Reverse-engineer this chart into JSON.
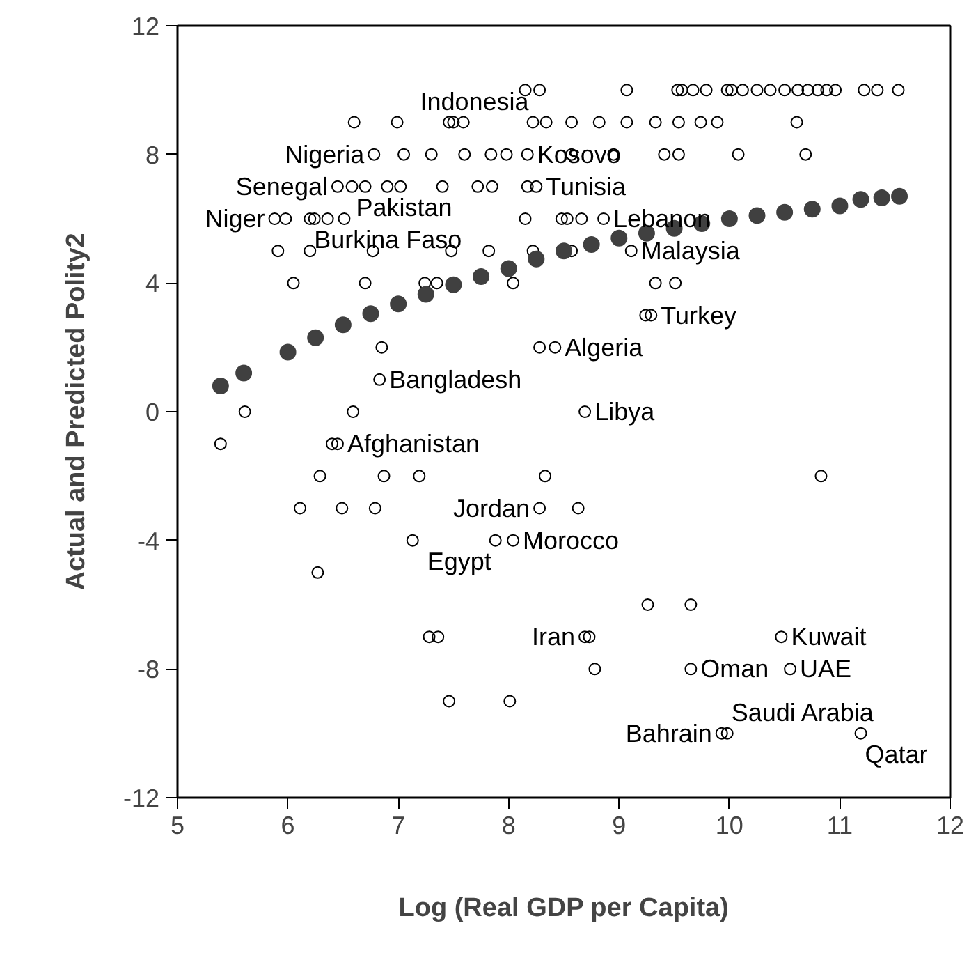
{
  "chart_data": {
    "type": "scatter",
    "xlabel": "Log (Real GDP per Capita)",
    "ylabel": "Actual and Predicted Polity2",
    "xlim": [
      5,
      12
    ],
    "ylim": [
      -12,
      12
    ],
    "xticks": [
      5,
      6,
      7,
      8,
      9,
      10,
      11,
      12
    ],
    "yticks": [
      -12,
      -8,
      -4,
      0,
      4,
      8,
      12
    ],
    "grid": false,
    "series": [
      {
        "color": "#000000",
        "marker": "circle",
        "x": [
          6.78,
          7.05,
          7.3,
          7.6,
          8.15,
          8.28,
          9.07,
          9.53,
          9.57,
          9.67,
          9.79,
          9.98,
          10.02,
          10.12,
          10.25,
          10.37,
          10.5,
          10.62,
          10.71,
          10.8,
          10.88,
          10.96,
          11.22,
          11.34,
          11.53,
          6.6,
          6.99,
          7.46,
          7.5,
          7.59,
          8.22,
          8.34,
          8.57,
          8.82,
          9.07,
          9.33,
          9.54,
          9.74,
          9.89,
          10.61,
          7.84,
          7.98,
          8.17,
          8.57,
          8.95,
          9.41,
          9.54,
          10.08,
          10.69,
          6.45,
          6.58,
          6.7,
          6.9,
          7.02,
          7.4,
          7.72,
          7.85,
          8.17,
          8.25,
          5.88,
          5.98,
          6.2,
          6.24,
          6.36,
          6.51,
          8.15,
          8.48,
          8.53,
          8.66,
          8.86,
          5.91,
          6.2,
          6.77,
          7.48,
          7.82,
          8.22,
          8.57,
          9.11,
          6.05,
          6.7,
          7.24,
          7.35,
          8.04,
          9.33,
          9.51,
          9.24,
          9.29,
          6.85,
          8.28,
          8.42,
          6.83,
          5.61,
          6.59,
          8.69,
          5.39,
          6.4,
          6.45,
          6.29,
          6.87,
          7.19,
          8.33,
          10.83,
          6.11,
          6.49,
          6.79,
          8.28,
          8.63,
          7.13,
          7.88,
          8.04,
          6.27,
          9.26,
          9.65,
          7.28,
          7.36,
          8.69,
          8.73,
          10.47,
          8.78,
          9.65,
          10.55,
          7.46,
          8.01,
          9.93,
          9.98,
          11.19
        ],
        "values": [
          8,
          8,
          8,
          8,
          10,
          10,
          10,
          10,
          10,
          10,
          10,
          10,
          10,
          10,
          10,
          10,
          10,
          10,
          10,
          10,
          10,
          10,
          10,
          10,
          10,
          9,
          9,
          9,
          9,
          9,
          9,
          9,
          9,
          9,
          9,
          9,
          9,
          9,
          9,
          9,
          8,
          8,
          8,
          8,
          8,
          8,
          8,
          8,
          8,
          7,
          7,
          7,
          7,
          7,
          7,
          7,
          7,
          7,
          7,
          6,
          6,
          6,
          6,
          6,
          6,
          6,
          6,
          6,
          6,
          6,
          5,
          5,
          5,
          5,
          5,
          5,
          5,
          5,
          4,
          4,
          4,
          4,
          4,
          4,
          4,
          3,
          3,
          2,
          2,
          2,
          1,
          0,
          0,
          0,
          -1,
          -1,
          -1,
          -2,
          -2,
          -2,
          -2,
          -2,
          -3,
          -3,
          -3,
          -3,
          -3,
          -4,
          -4,
          -4,
          -5,
          -6,
          -6,
          -7,
          -7,
          -7,
          -7,
          -7,
          -8,
          -8,
          -8,
          -9,
          -9,
          -10,
          -10,
          -10
        ]
      },
      {
        "color": "#404040",
        "marker": "circle",
        "x": [
          5.39,
          5.6,
          6.0,
          6.25,
          6.5,
          6.75,
          7.0,
          7.25,
          7.5,
          7.75,
          8.0,
          8.25,
          8.5,
          8.75,
          9.0,
          9.25,
          9.5,
          9.75,
          10.0,
          10.25,
          10.5,
          10.75,
          11.0,
          11.19,
          11.38,
          11.54
        ],
        "values": [
          0.8,
          1.2,
          1.85,
          2.3,
          2.7,
          3.05,
          3.35,
          3.65,
          3.95,
          4.2,
          4.45,
          4.75,
          5.0,
          5.2,
          5.4,
          5.55,
          5.7,
          5.85,
          6.0,
          6.1,
          6.2,
          6.3,
          6.4,
          6.6,
          6.65,
          6.7
        ]
      }
    ],
    "annotations": [
      {
        "text": "Indonesia",
        "x": 8.22,
        "y": 9
      },
      {
        "text": "Nigeria",
        "x": 6.78,
        "y": 8
      },
      {
        "text": "Kosovo",
        "x": 8.17,
        "y": 8
      },
      {
        "text": "Senegal",
        "x": 6.45,
        "y": 7
      },
      {
        "text": "Tunisia",
        "x": 8.25,
        "y": 7
      },
      {
        "text": "Pakistan",
        "x": 6.58,
        "y": 7
      },
      {
        "text": "Niger",
        "x": 5.88,
        "y": 6
      },
      {
        "text": "Burkina Faso",
        "x": 6.2,
        "y": 6
      },
      {
        "text": "Lebanon",
        "x": 8.86,
        "y": 6
      },
      {
        "text": "Malaysia",
        "x": 9.11,
        "y": 5
      },
      {
        "text": "Turkey",
        "x": 9.29,
        "y": 3
      },
      {
        "text": "Algeria",
        "x": 8.42,
        "y": 2
      },
      {
        "text": "Bangladesh",
        "x": 6.83,
        "y": 1
      },
      {
        "text": "Libya",
        "x": 8.69,
        "y": 0
      },
      {
        "text": "Afghanistan",
        "x": 6.45,
        "y": -1
      },
      {
        "text": "Jordan",
        "x": 8.28,
        "y": -3
      },
      {
        "text": "Morocco",
        "x": 8.04,
        "y": -4
      },
      {
        "text": "Egypt",
        "x": 7.88,
        "y": -4
      },
      {
        "text": "Iran",
        "x": 8.69,
        "y": -7
      },
      {
        "text": "Kuwait",
        "x": 10.47,
        "y": -7
      },
      {
        "text": "Oman",
        "x": 9.65,
        "y": -8
      },
      {
        "text": "UAE",
        "x": 10.55,
        "y": -8
      },
      {
        "text": "Saudi Arabia",
        "x": 9.98,
        "y": -10
      },
      {
        "text": "Bahrain",
        "x": 9.93,
        "y": -10
      },
      {
        "text": "Qatar",
        "x": 11.19,
        "y": -10
      }
    ]
  }
}
